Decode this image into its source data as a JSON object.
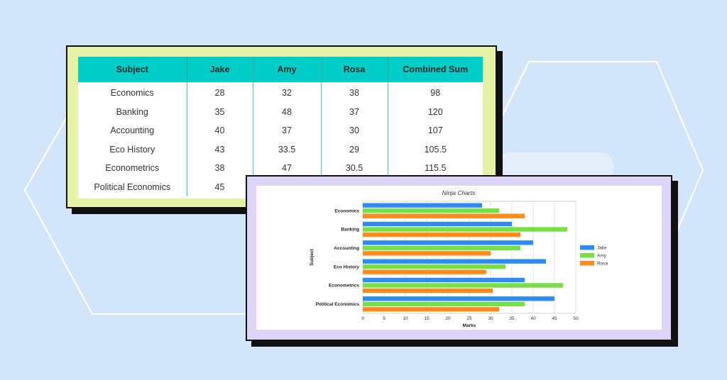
{
  "table": {
    "headers": [
      "Subject",
      "Jake",
      "Amy",
      "Rosa",
      "Combined Sum"
    ],
    "rows": [
      [
        "Economics",
        "28",
        "32",
        "38",
        "98"
      ],
      [
        "Banking",
        "35",
        "48",
        "37",
        "120"
      ],
      [
        "Accounting",
        "40",
        "37",
        "30",
        "107"
      ],
      [
        "Eco History",
        "43",
        "33.5",
        "29",
        "105.5"
      ],
      [
        "Econometrics",
        "38",
        "47",
        "30.5",
        "115.5"
      ],
      [
        "Political Economics",
        "45",
        "",
        "",
        ""
      ]
    ]
  },
  "chart_data": {
    "type": "bar",
    "orientation": "horizontal",
    "title": "Ninja Charts",
    "xlabel": "Marks",
    "ylabel": "Subject",
    "categories": [
      "Economics",
      "Banking",
      "Accounting",
      "Eco History",
      "Econometrics",
      "Political Economics"
    ],
    "series": [
      {
        "name": "Jake",
        "color": "#2e8cf0",
        "values": [
          28,
          35,
          40,
          43,
          38,
          45
        ]
      },
      {
        "name": "Amy",
        "color": "#77e046",
        "values": [
          32,
          48,
          37,
          33.5,
          47,
          38
        ]
      },
      {
        "name": "Rosa",
        "color": "#fb8c1b",
        "values": [
          38,
          37,
          30,
          29,
          30.5,
          32
        ]
      }
    ],
    "xlim": [
      0,
      50
    ],
    "xticks": [
      "0",
      "5",
      "10",
      "15",
      "20",
      "25",
      "30",
      "35",
      "40",
      "45",
      "50"
    ],
    "grid": true,
    "legend": "right"
  },
  "colors": {
    "background": "#d3e6f9",
    "table_card": "#e6f2a8",
    "table_header": "#00cdc8",
    "chart_card": "#ddd4f8"
  }
}
